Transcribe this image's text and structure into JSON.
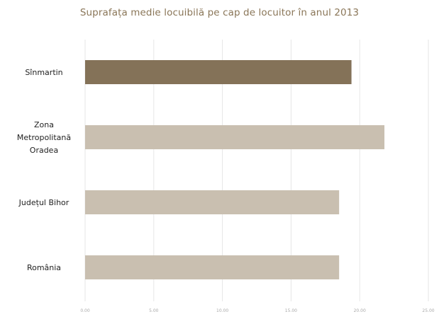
{
  "chart_data": {
    "type": "bar",
    "orientation": "horizontal",
    "title": "Suprafața medie locuibilă pe cap de locuitor în anul 2013",
    "categories": [
      [
        "Sînmartin"
      ],
      [
        "Zona",
        "Metropolitană",
        "Oradea"
      ],
      [
        "Județul Bihor"
      ],
      [
        "România"
      ]
    ],
    "values": [
      19.4,
      21.8,
      18.5,
      18.5
    ],
    "bar_colors": [
      "#847258",
      "#c9bfb0",
      "#c9bfb0",
      "#c9bfb0"
    ],
    "xlim": [
      0,
      25
    ],
    "xticks": [
      0,
      5,
      10,
      15,
      20,
      25
    ],
    "xtick_labels": [
      "0.00",
      "5.00",
      "10.00",
      "15.00",
      "20.00",
      "25.00"
    ],
    "grid": true,
    "xlabel": "",
    "ylabel": ""
  }
}
